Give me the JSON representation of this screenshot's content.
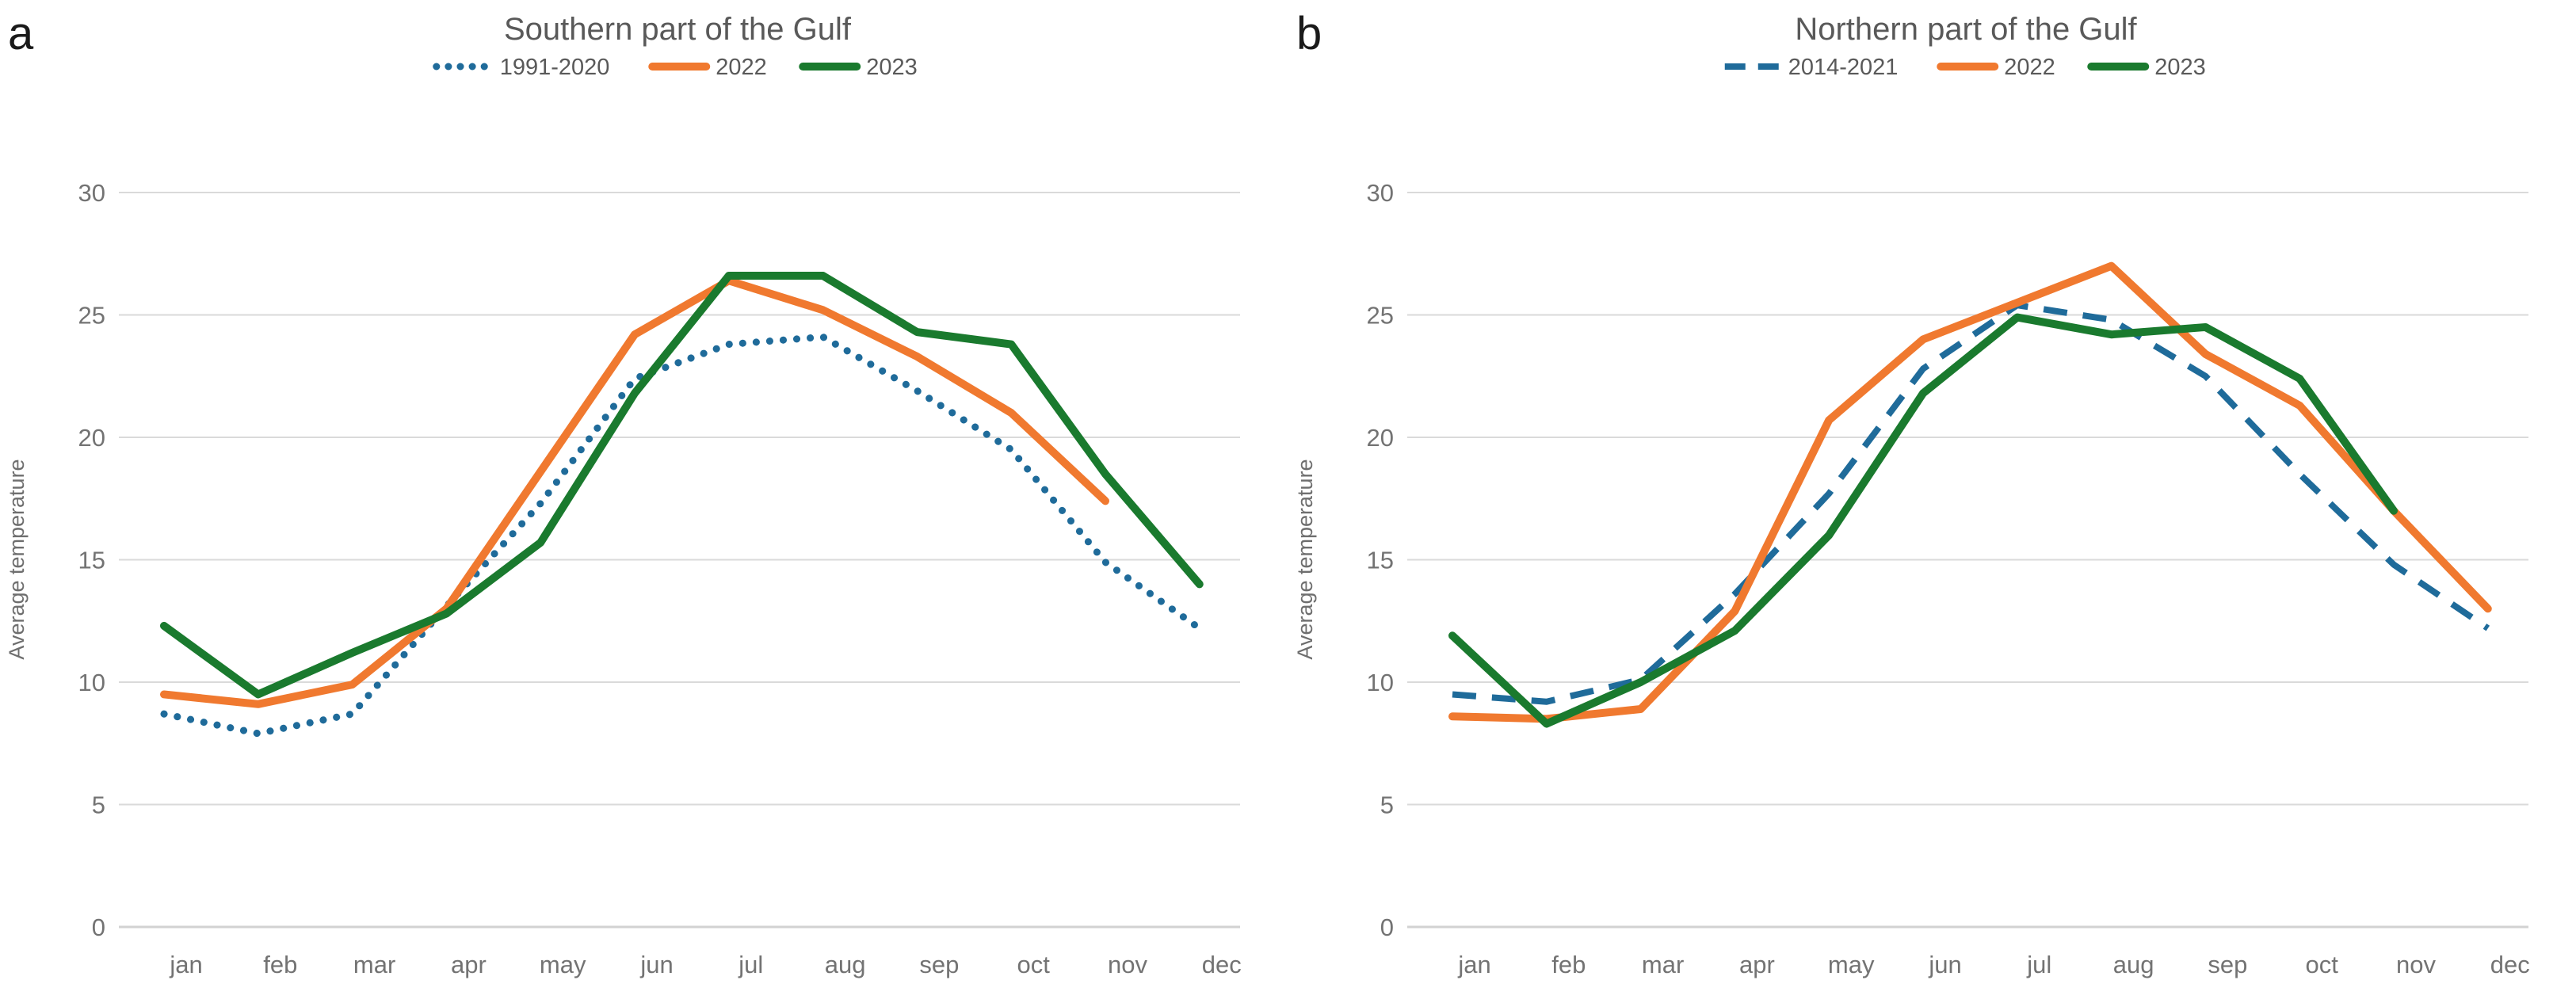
{
  "figure": {
    "background": "#ffffff"
  },
  "text_colors": {
    "title": "#595959",
    "axis_labels": "#737373",
    "panel_label": "#1a1a1a"
  },
  "grid_color": "#dadada",
  "chart_data": [
    {
      "type": "line",
      "panel_label": "a",
      "title": "Southern part of the Gulf",
      "ylabel": "Average temperature",
      "xlabel": "",
      "ylim": [
        0,
        30
      ],
      "yticks": [
        "0",
        "5",
        "10",
        "15",
        "20",
        "25",
        "30"
      ],
      "grid": "horizontal",
      "legend_position": "top-center",
      "categories": [
        "jan",
        "feb",
        "mar",
        "apr",
        "may",
        "jun",
        "jul",
        "aug",
        "sep",
        "oct",
        "nov",
        "dec"
      ],
      "series": [
        {
          "name": "1991-2020",
          "style": "dotted",
          "color": "#1f6b9a",
          "values": [
            8.7,
            7.9,
            8.7,
            13.1,
            17.3,
            22.4,
            23.8,
            24.1,
            21.9,
            19.5,
            14.9,
            12.2
          ]
        },
        {
          "name": "2022",
          "style": "solid",
          "color": "#f0792f",
          "values": [
            9.5,
            9.1,
            9.9,
            13.0,
            18.6,
            24.2,
            26.4,
            25.2,
            23.3,
            21.0,
            17.4,
            null
          ]
        },
        {
          "name": "2023",
          "style": "solid",
          "color": "#1a7a2e",
          "values": [
            12.3,
            9.5,
            11.2,
            12.8,
            15.7,
            21.8,
            26.6,
            26.6,
            24.3,
            23.8,
            18.5,
            14.0
          ]
        }
      ]
    },
    {
      "type": "line",
      "panel_label": "b",
      "title": "Northern part of the Gulf",
      "ylabel": "Average temperature",
      "xlabel": "",
      "ylim": [
        0,
        30
      ],
      "yticks": [
        "0",
        "5",
        "10",
        "15",
        "20",
        "25",
        "30"
      ],
      "grid": "horizontal",
      "legend_position": "top-center",
      "categories": [
        "jan",
        "feb",
        "mar",
        "apr",
        "may",
        "jun",
        "jul",
        "aug",
        "sep",
        "oct",
        "nov",
        "dec"
      ],
      "series": [
        {
          "name": "2014-2021",
          "style": "dashed",
          "color": "#1f6b9a",
          "values": [
            9.5,
            9.2,
            10.1,
            13.6,
            17.7,
            22.8,
            25.4,
            24.8,
            22.5,
            18.5,
            14.8,
            12.2
          ]
        },
        {
          "name": "2022",
          "style": "solid",
          "color": "#f0792f",
          "values": [
            8.6,
            8.5,
            8.9,
            12.9,
            20.7,
            24.0,
            25.5,
            27.0,
            23.4,
            21.3,
            17.0,
            13.0
          ]
        },
        {
          "name": "2023",
          "style": "solid",
          "color": "#1a7a2e",
          "values": [
            11.9,
            8.3,
            10.0,
            12.1,
            16.0,
            21.8,
            24.9,
            24.2,
            24.5,
            22.4,
            17.0,
            null
          ]
        }
      ]
    }
  ]
}
